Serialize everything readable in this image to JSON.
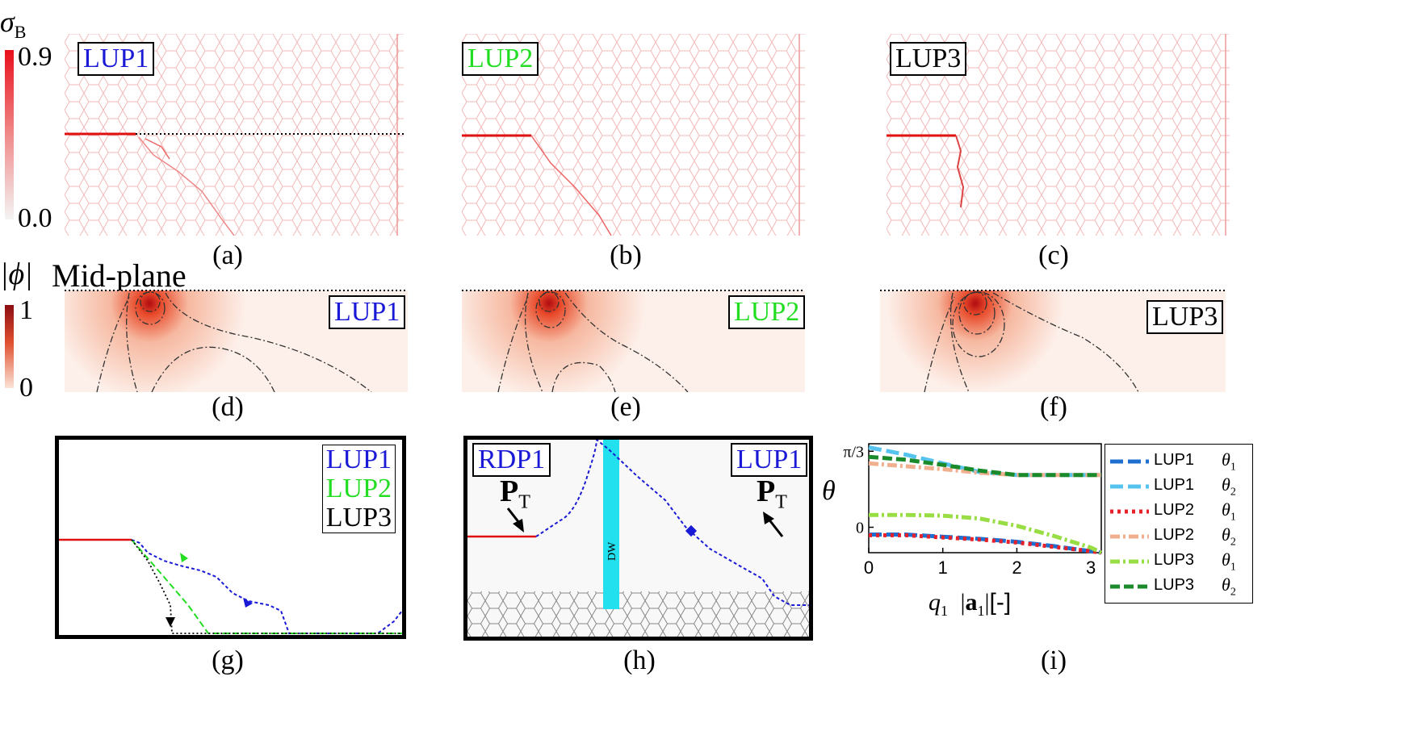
{
  "colorbars": {
    "sigma": {
      "symbol": "σ",
      "sub": "B",
      "tilde": "~",
      "max": "0.9",
      "min": "0.0",
      "color_top": "#e8101b",
      "color_bottom": "#ffffff"
    },
    "phi": {
      "symbol": "|ϕ|",
      "max": "1",
      "min": "0",
      "color_top": "#8b0c12",
      "color_bottom": "#fbe9e0"
    }
  },
  "mid_plane_label": "Mid-plane",
  "panel_letters": {
    "a": "(a)",
    "b": "(b)",
    "c": "(c)",
    "d": "(d)",
    "e": "(e)",
    "f": "(f)",
    "g": "(g)",
    "h": "(h)",
    "i": "(i)"
  },
  "lup_labels": {
    "lup1": "LUP1",
    "lup2": "LUP2",
    "lup3": "LUP3"
  },
  "panel_h": {
    "rdp_label": "RDP1",
    "lup_label": "LUP1",
    "pt_symbol": "P",
    "pt_sub": "T",
    "dw_label": "DW"
  },
  "colors": {
    "lup1": "#1a1ad6",
    "lup2": "#22dd22",
    "lup3": "#000000",
    "crack": "#e01010",
    "dw": "#22e0ee"
  },
  "chart_data": {
    "type": "line",
    "title": "",
    "xlabel": "q1 |a1| [-]",
    "xlabel_parts": {
      "q": "q",
      "q_sub": "1",
      "a": "a",
      "a_sub": "1",
      "unit": "[-]"
    },
    "ylabel": "θ",
    "xlim": [
      0,
      3.14
    ],
    "ylim": [
      -0.35,
      1.15
    ],
    "xticks": [
      0,
      1,
      2,
      3
    ],
    "xtick_labels": [
      "0",
      "1",
      "2",
      "3"
    ],
    "yticks": [
      0,
      1.047
    ],
    "ytick_labels": [
      "0",
      "π/3"
    ],
    "series": [
      {
        "name": "LUP1",
        "sub": "θ",
        "sub_index": "1",
        "color": "#1f6fd0",
        "dash": "16,6",
        "x": [
          0,
          0.5,
          1,
          1.5,
          2,
          2.5,
          3,
          3.14
        ],
        "y": [
          -0.1,
          -0.1,
          -0.13,
          -0.16,
          -0.2,
          -0.26,
          -0.33,
          -0.35
        ]
      },
      {
        "name": "LUP1",
        "sub": "θ",
        "sub_index": "2",
        "color": "#56c3ee",
        "dash": "16,6",
        "x": [
          0,
          0.5,
          1,
          1.5,
          2,
          2.5,
          3,
          3.14
        ],
        "y": [
          1.1,
          1.0,
          0.88,
          0.76,
          0.72,
          0.72,
          0.72,
          0.72
        ]
      },
      {
        "name": "LUP2",
        "sub": "θ",
        "sub_index": "1",
        "color": "#e8202a",
        "dash": "4,5",
        "x": [
          0,
          0.5,
          1,
          1.5,
          2,
          2.5,
          3,
          3.14
        ],
        "y": [
          -0.11,
          -0.11,
          -0.14,
          -0.17,
          -0.21,
          -0.27,
          -0.33,
          -0.35
        ]
      },
      {
        "name": "LUP2",
        "sub": "θ",
        "sub_index": "2",
        "color": "#f0b090",
        "dash": "12,4,3,4",
        "x": [
          0,
          0.5,
          1,
          1.5,
          2,
          2.5,
          3,
          3.14
        ],
        "y": [
          0.88,
          0.84,
          0.8,
          0.75,
          0.72,
          0.72,
          0.72,
          0.72
        ]
      },
      {
        "name": "LUP3",
        "sub": "θ",
        "sub_index": "1",
        "color": "#99dd44",
        "dash": "12,4,3,4",
        "x": [
          0,
          0.5,
          1,
          1.5,
          2,
          2.5,
          3,
          3.14
        ],
        "y": [
          0.17,
          0.17,
          0.16,
          0.12,
          0.02,
          -0.12,
          -0.28,
          -0.35
        ]
      },
      {
        "name": "LUP3",
        "sub": "θ",
        "sub_index": "2",
        "color": "#1a8a2a",
        "dash": "12,5",
        "x": [
          0,
          0.5,
          1,
          1.5,
          2,
          2.5,
          3,
          3.14
        ],
        "y": [
          0.97,
          0.93,
          0.86,
          0.78,
          0.72,
          0.72,
          0.72,
          0.72
        ]
      }
    ]
  }
}
